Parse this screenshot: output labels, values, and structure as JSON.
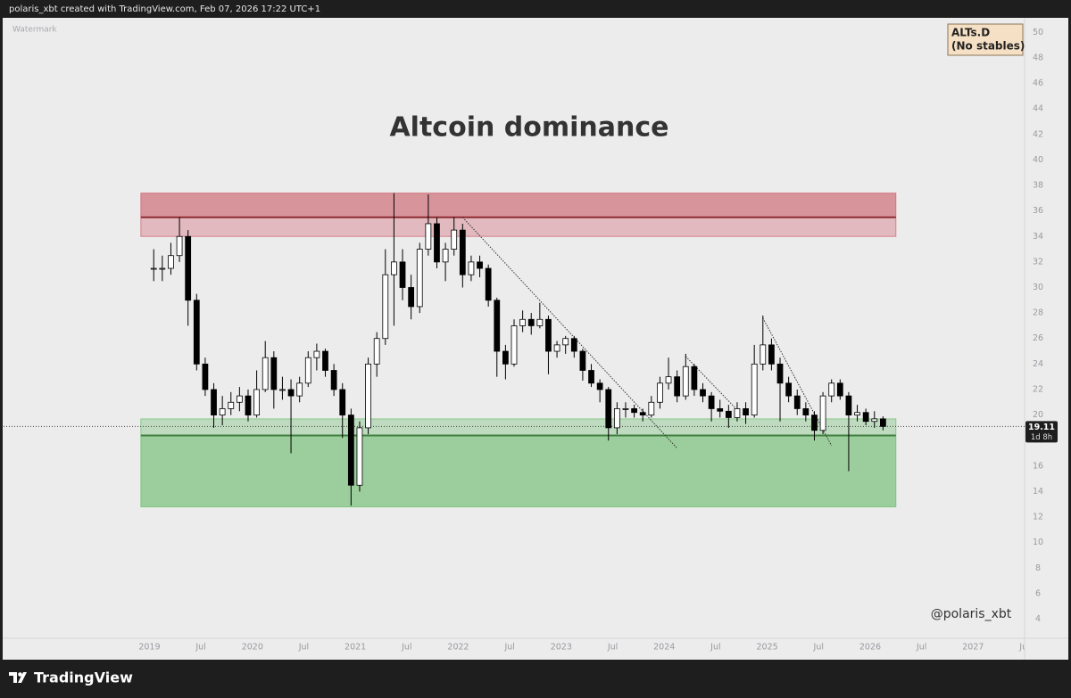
{
  "header": {
    "text": "polaris_xbt created with TradingView.com, Feb 07, 2026 17:22 UTC+1"
  },
  "footer": {
    "brand": "TradingView"
  },
  "chart_data": {
    "type": "candlestick",
    "title": "Altcoin dominance",
    "watermark": "Watermark",
    "symbol_lines": [
      "ALTs.D",
      "(No stables)"
    ],
    "signature": "@polaris_xbt",
    "last_price": 19.11,
    "countdown": "1d 8h",
    "up_color": "#ffffff",
    "down_color": "#000000",
    "wick_color": "#000000",
    "grid": false,
    "xlim": [
      "2017-08",
      "2027-07"
    ],
    "ylim": [
      2.5,
      51
    ],
    "yticks": [
      4,
      6,
      8,
      10,
      12,
      14,
      16,
      18,
      20,
      22,
      24,
      26,
      28,
      30,
      32,
      34,
      36,
      38,
      40,
      42,
      44,
      46,
      48,
      50
    ],
    "xticks": [
      {
        "value": "2019-01",
        "label": "2019"
      },
      {
        "value": "2019-07",
        "label": "Jul"
      },
      {
        "value": "2020-01",
        "label": "2020"
      },
      {
        "value": "2020-07",
        "label": "Jul"
      },
      {
        "value": "2021-01",
        "label": "2021"
      },
      {
        "value": "2021-07",
        "label": "Jul"
      },
      {
        "value": "2022-01",
        "label": "2022"
      },
      {
        "value": "2022-07",
        "label": "Jul"
      },
      {
        "value": "2023-01",
        "label": "2023"
      },
      {
        "value": "2023-07",
        "label": "Jul"
      },
      {
        "value": "2024-01",
        "label": "2024"
      },
      {
        "value": "2024-07",
        "label": "Jul"
      },
      {
        "value": "2025-01",
        "label": "2025"
      },
      {
        "value": "2025-07",
        "label": "Jul"
      },
      {
        "value": "2026-01",
        "label": "2026"
      },
      {
        "value": "2026-07",
        "label": "Jul"
      },
      {
        "value": "2027-01",
        "label": "2027"
      },
      {
        "value": "2027-07",
        "label": "Jul"
      }
    ],
    "zones": [
      {
        "low": 34,
        "high": 37.4,
        "line": 35.5,
        "start": "2018-12",
        "end": "2026-04",
        "color": "#c94f5b",
        "line_color": "#8e2a33",
        "edge": "high"
      },
      {
        "low": 12.8,
        "high": 19.7,
        "line": 18.4,
        "start": "2018-12",
        "end": "2026-04",
        "color": "#5cb85c",
        "line_color": "#3f7f3f",
        "edge": "low"
      }
    ],
    "trendlines": [
      {
        "x": [
          "2022-01",
          "2024-02"
        ],
        "y": [
          35.5,
          17.4
        ]
      },
      {
        "x": [
          "2024-03",
          "2024-09"
        ],
        "y": [
          24.6,
          20.4
        ]
      },
      {
        "x": [
          "2024-12",
          "2025-08"
        ],
        "y": [
          27.6,
          17.6
        ]
      }
    ],
    "candles": {
      "x": [
        "2019-01",
        "2019-02",
        "2019-03",
        "2019-04",
        "2019-05",
        "2019-06",
        "2019-07",
        "2019-08",
        "2019-09",
        "2019-10",
        "2019-11",
        "2019-12",
        "2020-01",
        "2020-02",
        "2020-03",
        "2020-04",
        "2020-05",
        "2020-06",
        "2020-07",
        "2020-08",
        "2020-09",
        "2020-10",
        "2020-11",
        "2020-12",
        "2021-01",
        "2021-02",
        "2021-03",
        "2021-04",
        "2021-05",
        "2021-06",
        "2021-07",
        "2021-08",
        "2021-09",
        "2021-10",
        "2021-11",
        "2021-12",
        "2022-01",
        "2022-02",
        "2022-03",
        "2022-04",
        "2022-05",
        "2022-06",
        "2022-07",
        "2022-08",
        "2022-09",
        "2022-10",
        "2022-11",
        "2022-12",
        "2023-01",
        "2023-02",
        "2023-03",
        "2023-04",
        "2023-05",
        "2023-06",
        "2023-07",
        "2023-08",
        "2023-09",
        "2023-10",
        "2023-11",
        "2023-12",
        "2024-01",
        "2024-02",
        "2024-03",
        "2024-04",
        "2024-05",
        "2024-06",
        "2024-07",
        "2024-08",
        "2024-09",
        "2024-10",
        "2024-11",
        "2024-12",
        "2025-01",
        "2025-02",
        "2025-03",
        "2025-04",
        "2025-05",
        "2025-06",
        "2025-07",
        "2025-08",
        "2025-09",
        "2025-10",
        "2025-11",
        "2025-12",
        "2026-01",
        "2026-02"
      ],
      "open": [
        31.5,
        31.5,
        31.5,
        32.5,
        34,
        29,
        24,
        22,
        20,
        20.5,
        21,
        21.5,
        20,
        22,
        24.5,
        22,
        22,
        21.5,
        22.5,
        24.5,
        25,
        23.5,
        22,
        20,
        14.5,
        19,
        24,
        26,
        31,
        32,
        30,
        28.5,
        33,
        35,
        32,
        33,
        34.5,
        31,
        32,
        31.5,
        29,
        25,
        24,
        27,
        27.5,
        27,
        27.5,
        25,
        25.5,
        26,
        25,
        23.5,
        22.5,
        22,
        19,
        20.5,
        20.5,
        20.2,
        20,
        21,
        22.5,
        23,
        21.5,
        23.8,
        22,
        21.5,
        20.5,
        20.3,
        19.8,
        20.5,
        20,
        24,
        25.5,
        24,
        22.5,
        21.5,
        20.5,
        20,
        18.8,
        21.5,
        22.5,
        21.5,
        20,
        20.2,
        19.5,
        19.7
      ],
      "high": [
        33,
        32.5,
        33.5,
        35.5,
        34.5,
        29.5,
        24.5,
        22.5,
        21.5,
        21.8,
        22.2,
        22,
        23.5,
        25.8,
        25,
        23,
        22.8,
        23,
        25,
        25.6,
        25.2,
        24,
        22.5,
        20.5,
        19.5,
        24.5,
        26.5,
        33,
        37.4,
        33,
        31,
        33.5,
        37.3,
        35.5,
        33.5,
        35.5,
        35,
        32.5,
        32.5,
        31.8,
        29.2,
        25.5,
        27.5,
        28.2,
        28,
        28.8,
        27.8,
        25.8,
        26.2,
        26.2,
        25.2,
        24,
        22.8,
        22.2,
        21,
        21,
        20.8,
        20.5,
        21.5,
        23,
        24.5,
        23.5,
        24.8,
        24,
        22.5,
        21.8,
        21.2,
        20.8,
        21,
        21,
        25.5,
        27.8,
        26,
        24.5,
        23,
        22,
        21,
        20.3,
        21.8,
        22.8,
        22.8,
        21.8,
        20.8,
        20.5,
        20.3,
        19.9
      ],
      "low": [
        30.5,
        30.5,
        31,
        32,
        27,
        23.5,
        21.5,
        19,
        19.2,
        20,
        20.3,
        19.5,
        19.8,
        21.8,
        20.5,
        21.2,
        17,
        21,
        22.2,
        23.5,
        23,
        21.5,
        18.2,
        12.9,
        14,
        18.5,
        23,
        25.5,
        27,
        29,
        27.5,
        28,
        32.5,
        31.5,
        30.5,
        32.5,
        30,
        30.5,
        30.8,
        28.5,
        23,
        22.8,
        23.8,
        26.5,
        26.3,
        26.8,
        23.2,
        24.5,
        24.8,
        24.5,
        22.7,
        22.2,
        21,
        18,
        18.5,
        19.8,
        19.8,
        19.5,
        19.8,
        20.5,
        22,
        21,
        21.2,
        21.5,
        21,
        19.5,
        19.8,
        19,
        19.5,
        19.3,
        19.8,
        23.5,
        23.5,
        19.5,
        21,
        20,
        19.5,
        18,
        18.5,
        21,
        21.2,
        15.6,
        19.5,
        19.2,
        19,
        18.8
      ],
      "close": [
        31.5,
        31.5,
        32.5,
        34,
        29,
        24,
        22,
        20,
        20.5,
        21,
        21.5,
        20,
        22,
        24.5,
        22,
        22,
        21.5,
        22.5,
        24.5,
        25,
        23.5,
        22,
        20,
        14.5,
        19,
        24,
        26,
        31,
        32,
        30,
        28.5,
        33,
        35,
        32,
        33,
        34.5,
        31,
        32,
        31.5,
        29,
        25,
        24,
        27,
        27.5,
        27,
        27.5,
        25,
        25.5,
        26,
        25,
        23.5,
        22.5,
        22,
        19,
        20.5,
        20.5,
        20.2,
        20,
        21,
        22.5,
        23,
        21.5,
        23.8,
        22,
        21.5,
        20.5,
        20.3,
        19.8,
        20.5,
        20,
        24,
        25.5,
        24,
        22.5,
        21.5,
        20.5,
        20,
        18.8,
        21.5,
        22.5,
        21.5,
        20,
        20.2,
        19.5,
        19.7,
        19.11
      ]
    }
  }
}
